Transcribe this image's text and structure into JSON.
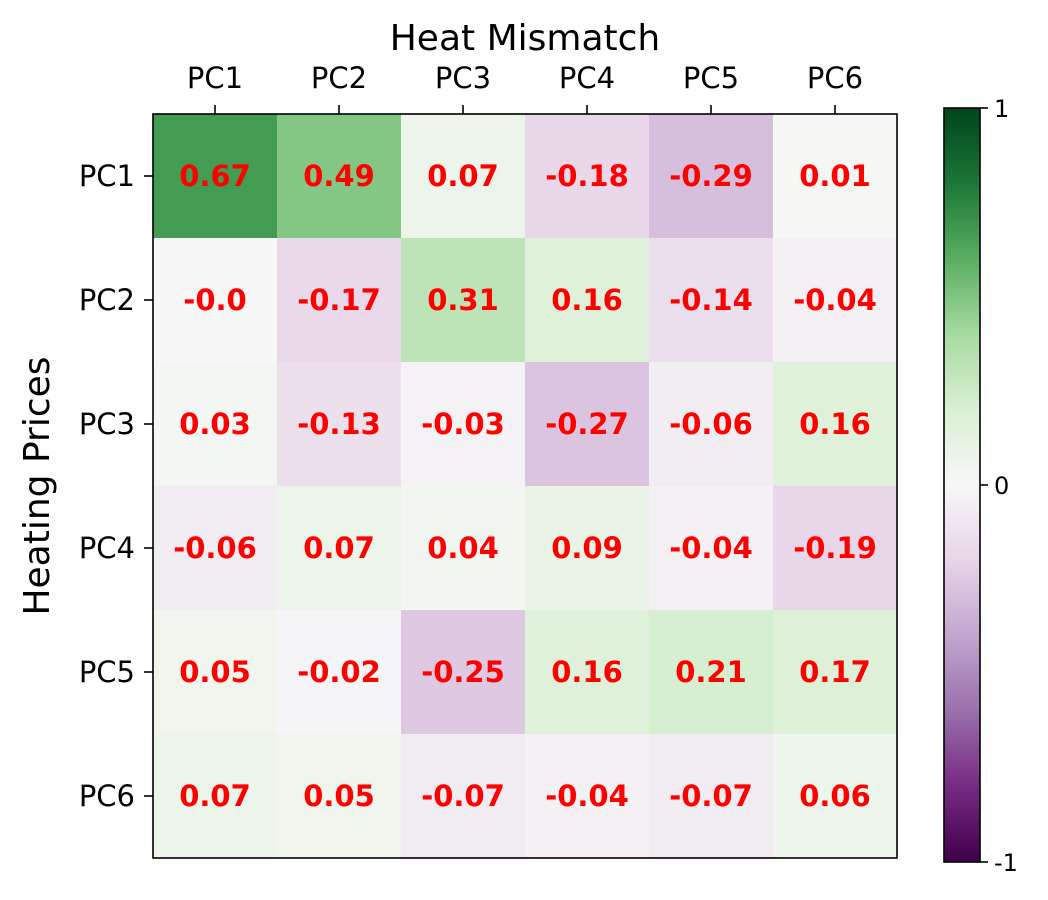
{
  "chart_data": {
    "type": "heatmap",
    "title": "Heat Mismatch",
    "xlabel": "Heat Mismatch",
    "ylabel": "Heating Prices",
    "x_categories": [
      "PC1",
      "PC2",
      "PC3",
      "PC4",
      "PC5",
      "PC6"
    ],
    "y_categories": [
      "PC1",
      "PC2",
      "PC3",
      "PC4",
      "PC5",
      "PC6"
    ],
    "values": [
      [
        0.67,
        0.49,
        0.07,
        -0.18,
        -0.29,
        0.01
      ],
      [
        -0.0,
        -0.17,
        0.31,
        0.16,
        -0.14,
        -0.04
      ],
      [
        0.03,
        -0.13,
        -0.03,
        -0.27,
        -0.06,
        0.16
      ],
      [
        -0.06,
        0.07,
        0.04,
        0.09,
        -0.04,
        -0.19
      ],
      [
        0.05,
        -0.02,
        -0.25,
        0.16,
        0.21,
        0.17
      ],
      [
        0.07,
        0.05,
        -0.07,
        -0.04,
        -0.07,
        0.06
      ]
    ],
    "value_labels": [
      [
        "0.67",
        "0.49",
        "0.07",
        "-0.18",
        "-0.29",
        "0.01"
      ],
      [
        "-0.0",
        "-0.17",
        "0.31",
        "0.16",
        "-0.14",
        "-0.04"
      ],
      [
        "0.03",
        "-0.13",
        "-0.03",
        "-0.27",
        "-0.06",
        "0.16"
      ],
      [
        "-0.06",
        "0.07",
        "0.04",
        "0.09",
        "-0.04",
        "-0.19"
      ],
      [
        "0.05",
        "-0.02",
        "-0.25",
        "0.16",
        "0.21",
        "0.17"
      ],
      [
        "0.07",
        "0.05",
        "-0.07",
        "-0.04",
        "-0.07",
        "0.06"
      ]
    ],
    "colormap": "PRGn",
    "vmin": -1,
    "vmax": 1,
    "colorbar_ticks": [
      "1",
      "0",
      "-1"
    ],
    "colorbar_tick_values": [
      1,
      0,
      -1
    ],
    "label_color": "#ff0000",
    "x_axis_position": "top",
    "grid": false
  }
}
